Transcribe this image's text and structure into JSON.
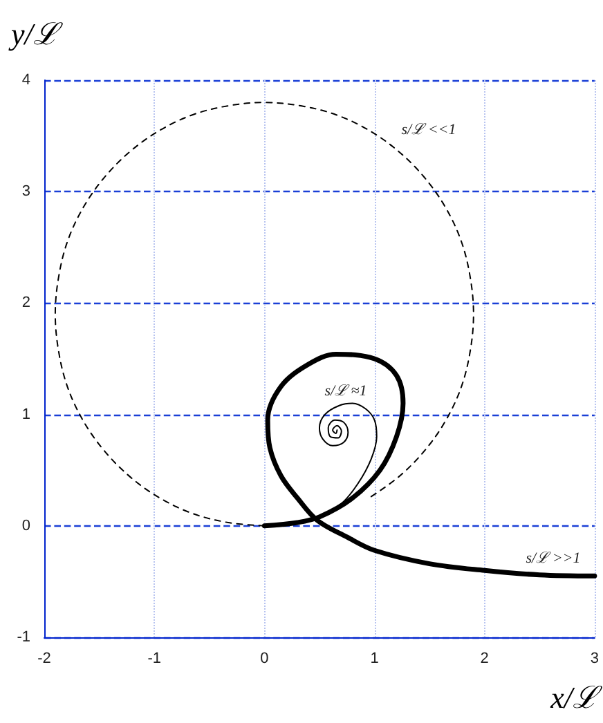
{
  "chart_data": {
    "type": "line",
    "xlabel": "x/ℒ",
    "ylabel": "y/ℒ",
    "xlim": [
      -2,
      3
    ],
    "ylim": [
      -1,
      4
    ],
    "xticks": [
      -2,
      -1,
      0,
      1,
      2,
      3
    ],
    "yticks": [
      -1,
      0,
      1,
      2,
      3,
      4
    ],
    "grid": true,
    "marker": "none",
    "series": [
      {
        "color": "#000000",
        "line_style": "dashed",
        "x": [
          0,
          -0.33,
          -0.65,
          -0.95,
          -1.22,
          -1.46,
          -1.65,
          -1.79,
          -1.87,
          -1.9,
          -1.87,
          -1.79,
          -1.65,
          -1.46,
          -1.22,
          -0.95,
          -0.65,
          -0.33,
          0,
          0.33,
          0.65,
          0.95,
          1.22,
          1.46,
          1.65,
          1.79,
          1.87,
          1.9,
          1.87,
          1.79,
          1.65,
          1.46,
          1.22,
          0.95
        ],
        "values": [
          0,
          0.03,
          0.11,
          0.25,
          0.44,
          0.68,
          0.95,
          1.25,
          1.57,
          1.9,
          2.23,
          2.55,
          2.85,
          3.12,
          3.36,
          3.55,
          3.69,
          3.77,
          3.8,
          3.77,
          3.69,
          3.55,
          3.36,
          3.12,
          2.85,
          2.55,
          2.23,
          1.9,
          1.57,
          1.25,
          0.95,
          0.68,
          0.44,
          0.25
        ]
      },
      {
        "color": "#000000",
        "line_style": "solid",
        "x": [
          0,
          0.3,
          0.5,
          0.7,
          0.85,
          0.97,
          1.02,
          1.0,
          0.92,
          0.8,
          0.68,
          0.55,
          0.5,
          0.53,
          0.62,
          0.72,
          0.76,
          0.72,
          0.64,
          0.58,
          0.6,
          0.67,
          0.7,
          0.66,
          0.62,
          0.65,
          0.66
        ],
        "values": [
          0,
          0.03,
          0.09,
          0.2,
          0.38,
          0.6,
          0.8,
          0.95,
          1.05,
          1.1,
          1.08,
          1.0,
          0.88,
          0.78,
          0.72,
          0.75,
          0.84,
          0.93,
          0.95,
          0.88,
          0.8,
          0.79,
          0.85,
          0.9,
          0.86,
          0.83,
          0.86
        ]
      },
      {
        "color": "#000000",
        "line_style": "solid",
        "x": [
          0,
          0.3,
          0.5,
          0.8,
          1.05,
          1.2,
          1.26,
          1.2,
          1.0,
          0.65,
          0.4,
          0.15,
          0.03,
          0.05,
          0.15,
          0.3,
          0.48,
          0.75,
          1.0,
          1.5,
          2.0,
          2.5,
          3.0
        ],
        "values": [
          0,
          0.03,
          0.08,
          0.25,
          0.5,
          0.8,
          1.1,
          1.35,
          1.5,
          1.54,
          1.45,
          1.25,
          0.95,
          0.7,
          0.45,
          0.25,
          0.05,
          -0.1,
          -0.22,
          -0.34,
          -0.4,
          -0.44,
          -0.45
        ]
      }
    ],
    "annotations": [
      "s/ℒ <<1",
      "s/ℒ ≈1",
      "s/ℒ >>1"
    ]
  }
}
